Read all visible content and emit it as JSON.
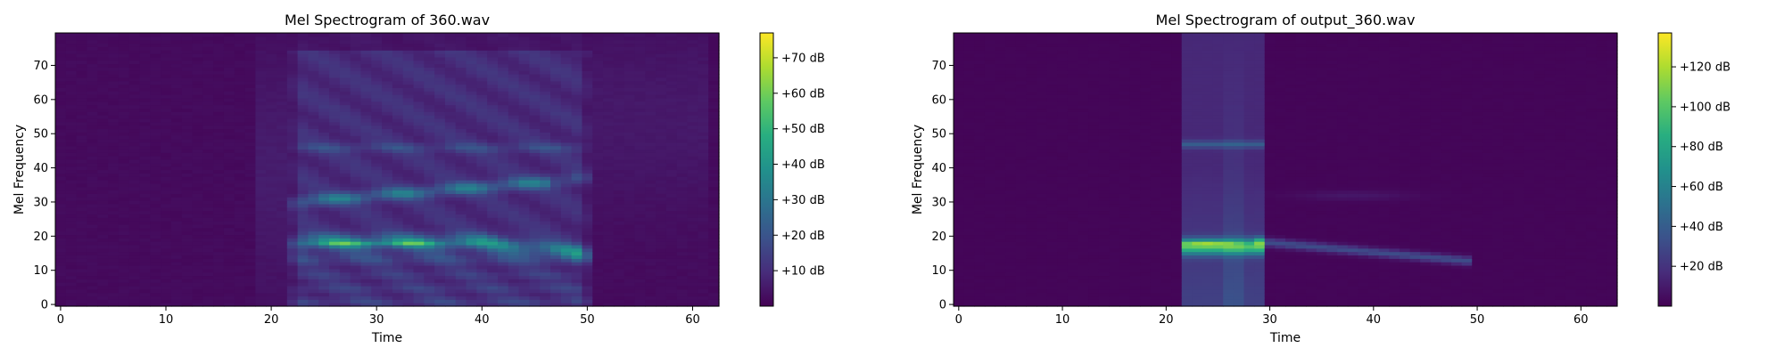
{
  "chart_data": [
    {
      "type": "heatmap",
      "title": "Mel Spectrogram of 360.wav",
      "xlabel": "Time",
      "ylabel": "Mel Frequency",
      "xlim": [
        -0.5,
        62.5
      ],
      "ylim": [
        -0.5,
        79.5
      ],
      "x_ticks": [
        0,
        10,
        20,
        30,
        40,
        50,
        60
      ],
      "y_ticks": [
        0,
        10,
        20,
        30,
        40,
        50,
        60,
        70
      ],
      "colormap": "viridis",
      "colorbar": {
        "range": [
          0,
          77
        ],
        "ticks": [
          10,
          20,
          30,
          40,
          50,
          60,
          70
        ],
        "labels": [
          "+10 dB",
          "+20 dB",
          "+30 dB",
          "+40 dB",
          "+50 dB",
          "+60 dB",
          "+70 dB"
        ]
      },
      "grid": false
    },
    {
      "type": "heatmap",
      "title": "Mel Spectrogram of output_360.wav",
      "xlabel": "Time",
      "ylabel": "Mel Frequency",
      "xlim": [
        -0.5,
        63.5
      ],
      "ylim": [
        -0.5,
        79.5
      ],
      "x_ticks": [
        0,
        10,
        20,
        30,
        40,
        50,
        60
      ],
      "y_ticks": [
        0,
        10,
        20,
        30,
        40,
        50,
        60,
        70
      ],
      "colormap": "viridis",
      "colorbar": {
        "range": [
          0,
          137
        ],
        "ticks": [
          20,
          40,
          60,
          80,
          100,
          120
        ],
        "labels": [
          "+20 dB",
          "+40 dB",
          "+60 dB",
          "+80 dB",
          "+100 dB",
          "+120 dB"
        ]
      },
      "grid": false
    }
  ]
}
